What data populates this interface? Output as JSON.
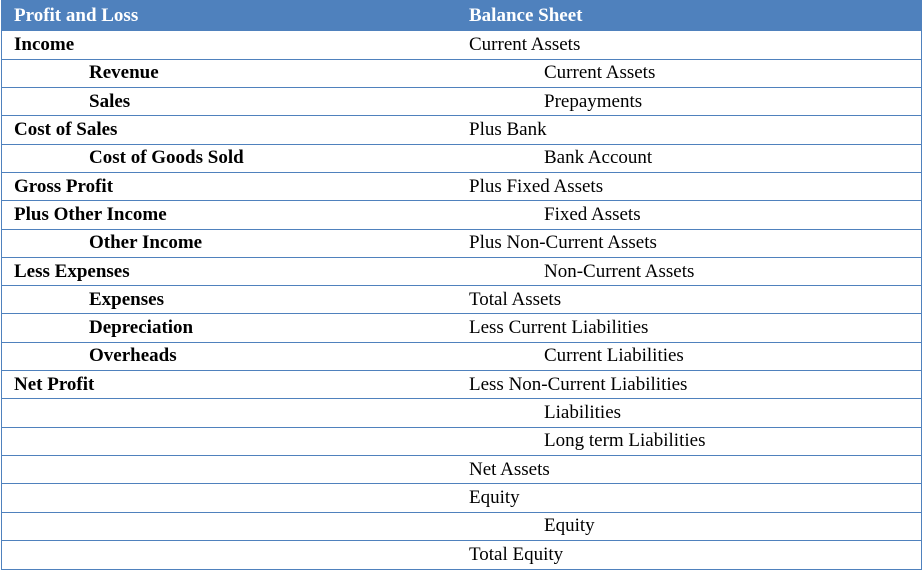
{
  "header": {
    "left": "Profit and Loss",
    "right": "Balance Sheet"
  },
  "rows": [
    {
      "pl": "Income",
      "pl_indent": false,
      "bs": "Current Assets",
      "bs_indent": false
    },
    {
      "pl": "Revenue",
      "pl_indent": true,
      "bs": "Current Assets",
      "bs_indent": true
    },
    {
      "pl": "Sales",
      "pl_indent": true,
      "bs": "Prepayments",
      "bs_indent": true
    },
    {
      "pl": "Cost of Sales",
      "pl_indent": false,
      "bs": "Plus Bank",
      "bs_indent": false
    },
    {
      "pl": "Cost of Goods Sold",
      "pl_indent": true,
      "bs": "Bank Account",
      "bs_indent": true
    },
    {
      "pl": "Gross Profit",
      "pl_indent": false,
      "bs": "Plus Fixed Assets",
      "bs_indent": false
    },
    {
      "pl": "Plus Other Income",
      "pl_indent": false,
      "bs": "Fixed Assets",
      "bs_indent": true
    },
    {
      "pl": "Other Income",
      "pl_indent": true,
      "bs": "Plus Non-Current Assets",
      "bs_indent": false
    },
    {
      "pl": "Less Expenses",
      "pl_indent": false,
      "bs": "Non-Current Assets",
      "bs_indent": true
    },
    {
      "pl": "Expenses",
      "pl_indent": true,
      "bs": "Total Assets",
      "bs_indent": false
    },
    {
      "pl": "Depreciation",
      "pl_indent": true,
      "bs": "Less Current Liabilities",
      "bs_indent": false
    },
    {
      "pl": "Overheads",
      "pl_indent": true,
      "bs": "Current Liabilities",
      "bs_indent": true
    },
    {
      "pl": "Net Profit",
      "pl_indent": false,
      "bs": "Less Non-Current Liabilities",
      "bs_indent": false
    },
    {
      "pl": "",
      "pl_indent": false,
      "bs": "Liabilities",
      "bs_indent": true
    },
    {
      "pl": "",
      "pl_indent": false,
      "bs": "Long term Liabilities",
      "bs_indent": true
    },
    {
      "pl": "",
      "pl_indent": false,
      "bs": "Net Assets",
      "bs_indent": false
    },
    {
      "pl": "",
      "pl_indent": false,
      "bs": "Equity",
      "bs_indent": false
    },
    {
      "pl": "",
      "pl_indent": false,
      "bs": "Equity",
      "bs_indent": true
    },
    {
      "pl": "",
      "pl_indent": false,
      "bs": "Total Equity",
      "bs_indent": false
    }
  ],
  "colors": {
    "header_bg": "#4f81bd",
    "header_text": "#ffffff",
    "rule": "#4f81bd"
  }
}
